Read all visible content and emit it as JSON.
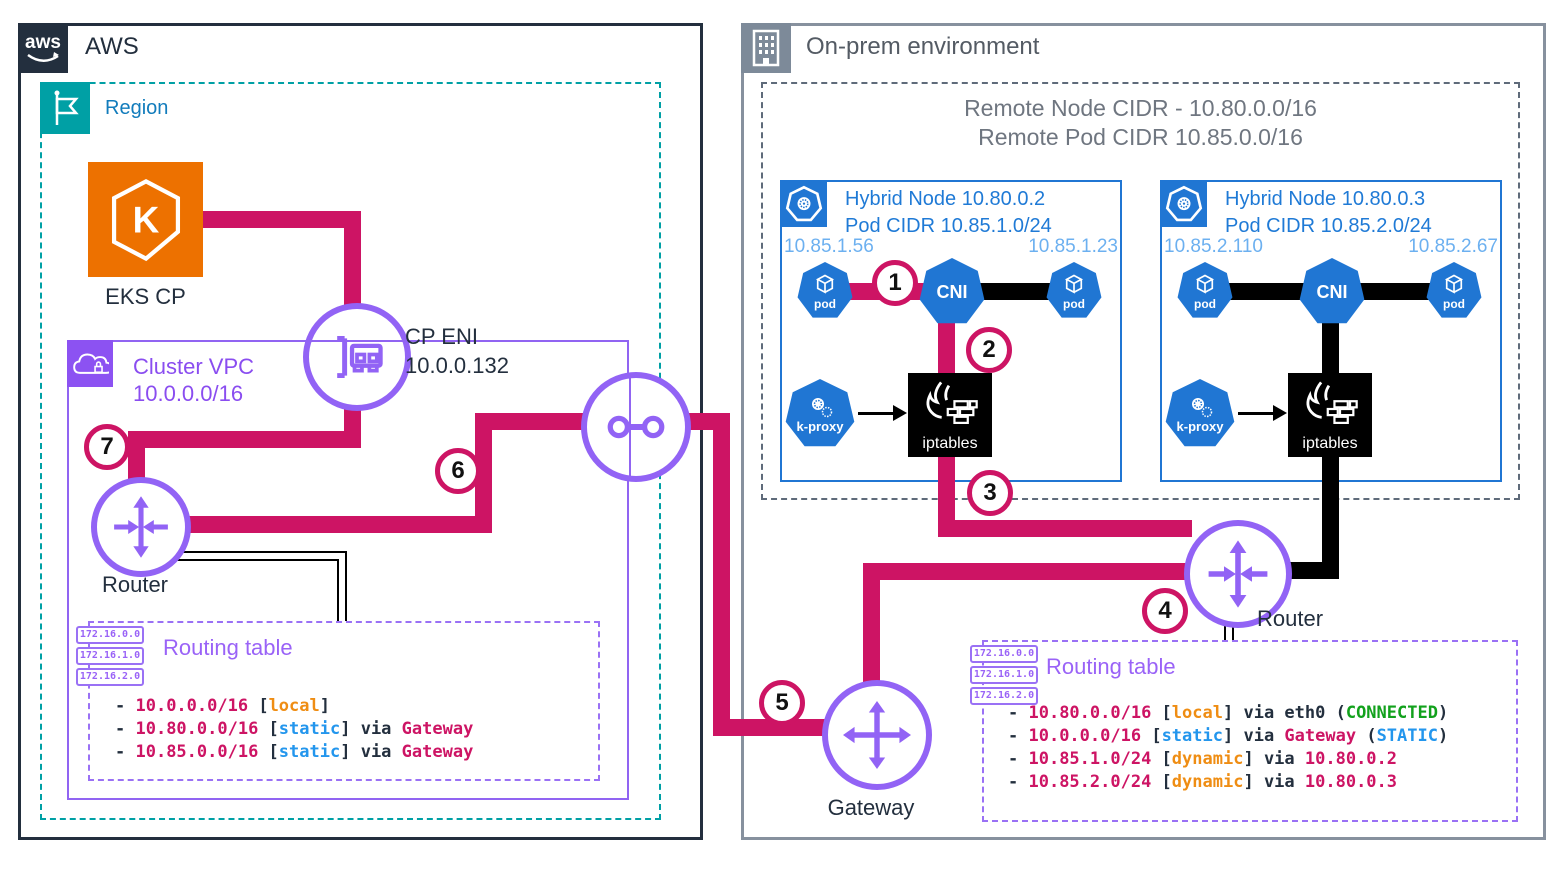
{
  "aws": {
    "logo_text": "aws",
    "label": "AWS"
  },
  "region": {
    "label": "Region"
  },
  "eks": {
    "glyph_letter": "K",
    "label": "EKS CP"
  },
  "cp_eni": {
    "label": "CP ENI",
    "ip": "10.0.0.132"
  },
  "cluster_vpc": {
    "label": "Cluster VPC",
    "cidr": "10.0.0.0/16"
  },
  "router_left": {
    "label": "Router"
  },
  "router_right": {
    "label": "Router"
  },
  "gateway": {
    "label": "Gateway"
  },
  "onprem": {
    "label": "On-prem environment",
    "remote_node_cidr": "Remote Node CIDR - 10.80.0.0/16",
    "remote_pod_cidr": "Remote Pod CIDR 10.85.0.0/16"
  },
  "node1": {
    "title1": "Hybrid Node 10.80.0.2",
    "title2": "Pod CIDR 10.85.1.0/24",
    "ip_left": "10.85.1.56",
    "ip_right": "10.85.1.23",
    "pod": "pod",
    "cni": "CNI",
    "kproxy": "k-proxy",
    "iptables": "iptables"
  },
  "node2": {
    "title1": "Hybrid Node 10.80.0.3",
    "title2": "Pod CIDR 10.85.2.0/24",
    "ip_left": "10.85.2.110",
    "ip_right": "10.85.2.67",
    "pod": "pod",
    "cni": "CNI",
    "kproxy": "k-proxy",
    "iptables": "iptables"
  },
  "routing_table_left": {
    "title": "Routing table",
    "chips": [
      "172.16.0.0",
      "172.16.1.0",
      "172.16.2.0"
    ],
    "entries": [
      [
        [
          "- ",
          "dark"
        ],
        [
          "10.0.0.0/16",
          "pink"
        ],
        [
          " [",
          "dark"
        ],
        [
          "local",
          "orange"
        ],
        [
          "]",
          "dark"
        ]
      ],
      [
        [
          "- ",
          "dark"
        ],
        [
          "10.80.0.0/16",
          "pink"
        ],
        [
          " [",
          "dark"
        ],
        [
          "static",
          "blue"
        ],
        [
          "] ",
          "dark"
        ],
        [
          "via ",
          "dark"
        ],
        [
          "Gateway",
          "pink"
        ]
      ],
      [
        [
          "- ",
          "dark"
        ],
        [
          "10.85.0.0/16",
          "pink"
        ],
        [
          " [",
          "dark"
        ],
        [
          "static",
          "blue"
        ],
        [
          "] ",
          "dark"
        ],
        [
          "via ",
          "dark"
        ],
        [
          "Gateway",
          "pink"
        ]
      ]
    ]
  },
  "routing_table_right": {
    "title": "Routing table",
    "chips": [
      "172.16.0.0",
      "172.16.1.0",
      "172.16.2.0"
    ],
    "entries": [
      [
        [
          "- ",
          "dark"
        ],
        [
          "10.80.0.0/16",
          "pink"
        ],
        [
          " [",
          "dark"
        ],
        [
          "local",
          "orange"
        ],
        [
          "] ",
          "dark"
        ],
        [
          "via eth0 (",
          "dark"
        ],
        [
          "CONNECTED",
          "green"
        ],
        [
          ")",
          "dark"
        ]
      ],
      [
        [
          "- ",
          "dark"
        ],
        [
          "10.0.0.0/16",
          "pink"
        ],
        [
          " [",
          "dark"
        ],
        [
          "static",
          "blue"
        ],
        [
          "] ",
          "dark"
        ],
        [
          "via ",
          "dark"
        ],
        [
          "Gateway",
          "pink"
        ],
        [
          " (",
          "dark"
        ],
        [
          "STATIC",
          "blue"
        ],
        [
          ")",
          "dark"
        ]
      ],
      [
        [
          "- ",
          "dark"
        ],
        [
          "10.85.1.0/24",
          "pink"
        ],
        [
          " [",
          "dark"
        ],
        [
          "dynamic",
          "orange"
        ],
        [
          "] ",
          "dark"
        ],
        [
          "via ",
          "dark"
        ],
        [
          "10.80.0.2",
          "pink"
        ]
      ],
      [
        [
          "- ",
          "dark"
        ],
        [
          "10.85.2.0/24",
          "pink"
        ],
        [
          " [",
          "dark"
        ],
        [
          "dynamic",
          "orange"
        ],
        [
          "] ",
          "dark"
        ],
        [
          "via ",
          "dark"
        ],
        [
          "10.80.0.3",
          "pink"
        ]
      ]
    ]
  },
  "badges": [
    "1",
    "2",
    "3",
    "4",
    "5",
    "6",
    "7"
  ],
  "colors": {
    "pink_line": "#cd1464",
    "purple_icon": "#9263f5",
    "node_blue": "#2076d3",
    "light_blue_ip": "#6cb0f0",
    "teal_region": "#00a0a5",
    "aws_navy": "#232f3e",
    "onprem_gray": "#7d8a99",
    "eks_orange": "#ed7100"
  }
}
